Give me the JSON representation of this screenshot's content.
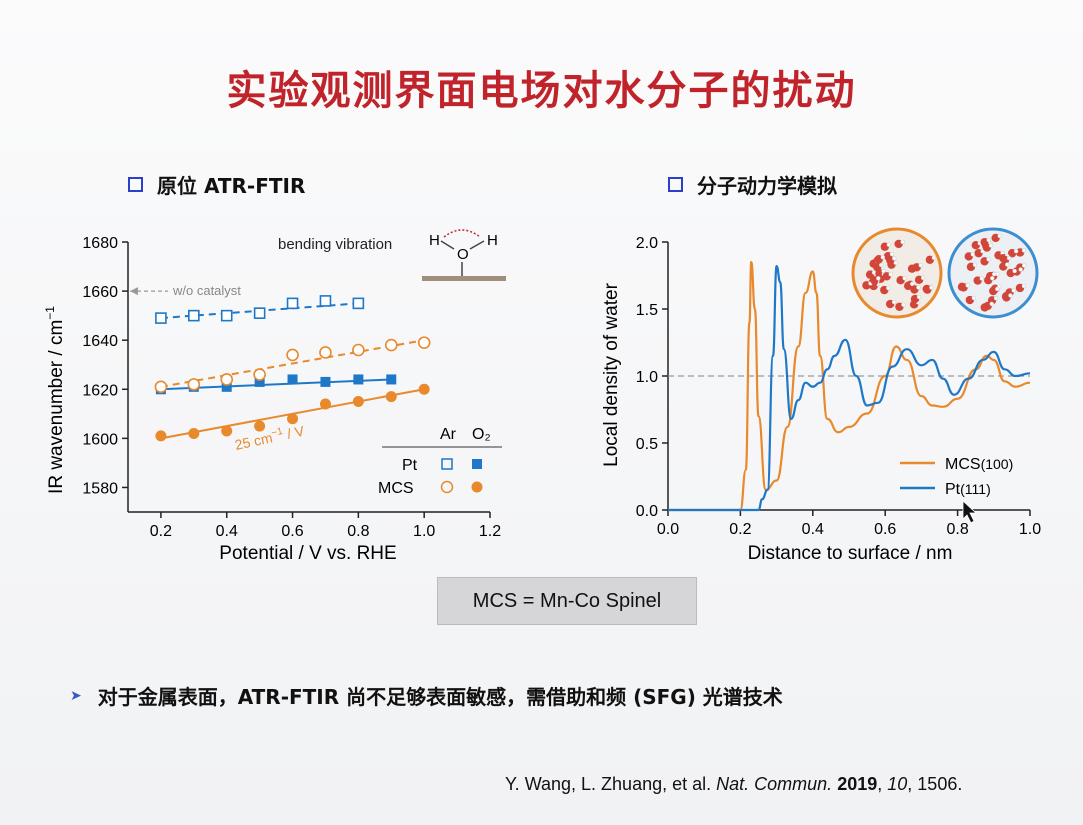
{
  "title": "实验观测界面电场对水分子的扰动",
  "section_left": "原位 ATR-FTIR",
  "section_right": "分子动力学模拟",
  "caption": "MCS  =  Mn-Co Spinel",
  "bullet": "对于金属表面，ATR-FTIR 尚不足够表面敏感，需借助和频 (SFG) 光谱技术",
  "reference": {
    "authors": "Y. Wang, L. Zhuang, et al. ",
    "journal": "Nat. Commun.",
    "year": "2019",
    "volume": "10",
    "pages": ", 1506."
  },
  "colors": {
    "title": "#c0242a",
    "blue": "#1f77c8",
    "orange": "#e8892c",
    "bullet_square": "#2b3fc9"
  },
  "chart_data": [
    {
      "type": "scatter",
      "xlabel": "Potential / V  vs. RHE",
      "ylabel": "IR wavenumber / cm",
      "ylabel_sup": "−1",
      "xlim": [
        0.1,
        1.2
      ],
      "ylim": [
        1570,
        1680
      ],
      "xticks": [
        "0.2",
        "0.4",
        "0.6",
        "0.8",
        "1.0",
        "1.2"
      ],
      "yticks": [
        "1580",
        "1600",
        "1620",
        "1640",
        "1660",
        "1680"
      ],
      "annotations": {
        "wo_catalyst": "w/o catalyst",
        "bending": "bending vibration",
        "slope": "25 cm",
        "slope_sup": "−1",
        "slope_unit": " / V",
        "mol_H1": "H",
        "mol_H2": "H",
        "mol_O": "O"
      },
      "legend_header": [
        "Ar",
        "O₂"
      ],
      "legend_rows": [
        "Pt",
        "MCS"
      ],
      "wo_catalyst_level": 1660,
      "series": [
        {
          "name": "Pt Ar",
          "marker": "open-square",
          "color": "#1f77c8",
          "dashed": true,
          "x": [
            0.2,
            0.3,
            0.4,
            0.5,
            0.6,
            0.7,
            0.8
          ],
          "y": [
            1649,
            1650,
            1650,
            1651,
            1655,
            1656,
            1655
          ],
          "fit": [
            [
              0.2,
              1649
            ],
            [
              0.8,
              1655
            ]
          ]
        },
        {
          "name": "Pt O2",
          "marker": "filled-square",
          "color": "#1f77c8",
          "dashed": false,
          "x": [
            0.2,
            0.3,
            0.4,
            0.5,
            0.6,
            0.7,
            0.8,
            0.9
          ],
          "y": [
            1620,
            1621,
            1621,
            1623,
            1624,
            1623,
            1624,
            1624
          ],
          "fit": [
            [
              0.2,
              1620
            ],
            [
              0.9,
              1624
            ]
          ]
        },
        {
          "name": "MCS Ar",
          "marker": "open-circle",
          "color": "#e8892c",
          "dashed": true,
          "x": [
            0.2,
            0.3,
            0.4,
            0.5,
            0.6,
            0.7,
            0.8,
            0.9,
            1.0
          ],
          "y": [
            1621,
            1622,
            1624,
            1626,
            1634,
            1635,
            1636,
            1638,
            1639
          ],
          "fit": [
            [
              0.2,
              1621
            ],
            [
              1.0,
              1640
            ]
          ]
        },
        {
          "name": "MCS O2",
          "marker": "filled-circle",
          "color": "#e8892c",
          "dashed": false,
          "x": [
            0.2,
            0.3,
            0.4,
            0.5,
            0.6,
            0.7,
            0.8,
            0.9,
            1.0
          ],
          "y": [
            1601,
            1602,
            1603,
            1605,
            1608,
            1614,
            1615,
            1617,
            1620
          ],
          "fit": [
            [
              0.2,
              1600
            ],
            [
              1.0,
              1620
            ]
          ]
        }
      ]
    },
    {
      "type": "line",
      "xlabel": "Distance to surface / nm",
      "ylabel": "Local density of water",
      "xlim": [
        0,
        1.0
      ],
      "ylim": [
        0,
        2.0
      ],
      "xticks": [
        "0.0",
        "0.2",
        "0.4",
        "0.6",
        "0.8",
        "1.0"
      ],
      "yticks": [
        "0.0",
        "0.5",
        "1.0",
        "1.5",
        "2.0"
      ],
      "reference_level": 1.0,
      "series": [
        {
          "name": "MCS",
          "label_suffix": "(100)",
          "color": "#e8892c",
          "x": [
            0,
            0.2,
            0.215,
            0.225,
            0.23,
            0.24,
            0.25,
            0.27,
            0.3,
            0.33,
            0.36,
            0.38,
            0.4,
            0.41,
            0.42,
            0.44,
            0.47,
            0.5,
            0.55,
            0.6,
            0.63,
            0.66,
            0.7,
            0.73,
            0.76,
            0.8,
            0.85,
            0.88,
            0.9,
            0.93,
            0.96,
            1.0
          ],
          "y": [
            0,
            0,
            0.3,
            1.4,
            1.85,
            1.5,
            0.7,
            0.15,
            0.22,
            0.62,
            1.22,
            1.62,
            1.78,
            1.62,
            1.15,
            0.68,
            0.58,
            0.62,
            0.72,
            1.0,
            1.22,
            1.12,
            0.85,
            0.78,
            0.77,
            0.83,
            1.05,
            1.15,
            1.12,
            0.96,
            0.92,
            0.95
          ]
        },
        {
          "name": "Pt",
          "label_suffix": "(111)",
          "color": "#1f77c8",
          "x": [
            0,
            0.25,
            0.26,
            0.275,
            0.29,
            0.3,
            0.31,
            0.32,
            0.34,
            0.36,
            0.38,
            0.4,
            0.42,
            0.44,
            0.46,
            0.49,
            0.52,
            0.55,
            0.58,
            0.62,
            0.66,
            0.7,
            0.73,
            0.76,
            0.79,
            0.83,
            0.87,
            0.9,
            0.93,
            0.96,
            1.0
          ],
          "y": [
            0,
            0,
            0.08,
            0.15,
            1.15,
            1.82,
            1.7,
            1.2,
            0.68,
            0.82,
            0.95,
            0.92,
            0.95,
            1.05,
            1.15,
            1.27,
            1.0,
            0.78,
            0.8,
            1.07,
            1.2,
            1.08,
            1.12,
            0.98,
            0.86,
            0.98,
            1.12,
            1.18,
            1.05,
            1.0,
            1.02
          ]
        }
      ]
    }
  ]
}
